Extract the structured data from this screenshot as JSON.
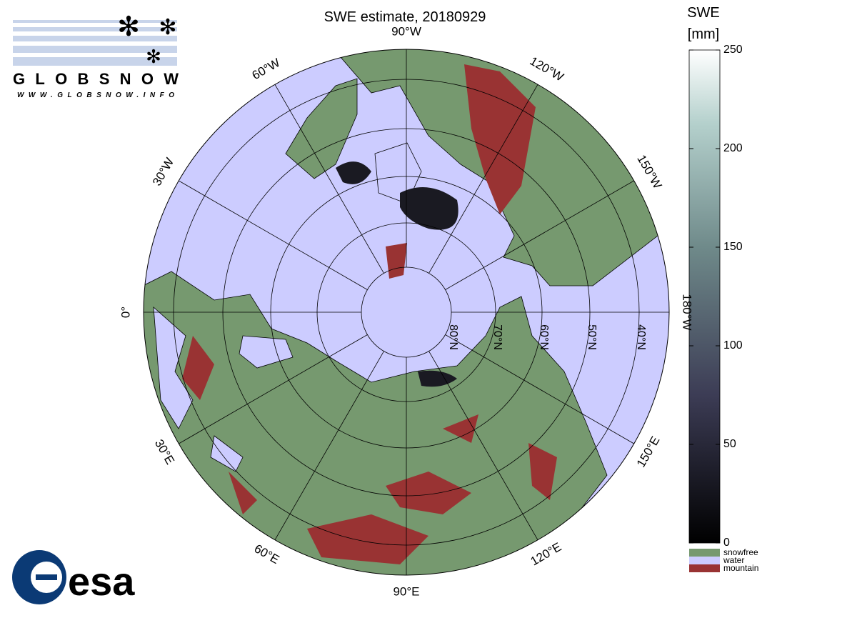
{
  "header": {
    "title": "SWE estimate, 20180929"
  },
  "map": {
    "longitude_labels": [
      "90°W",
      "120°W",
      "150°W",
      "180°W",
      "150°E",
      "120°E",
      "90°E",
      "60°E",
      "30°E",
      "0°",
      "30°W",
      "60°W"
    ],
    "latitude_labels": [
      "80°N",
      "70°N",
      "60°N",
      "50°N",
      "40°N"
    ]
  },
  "colorbar": {
    "title": "SWE",
    "unit": "[mm]",
    "lim": [
      0,
      250
    ],
    "ticks": [
      0,
      50,
      100,
      150,
      200,
      250
    ]
  },
  "legend": {
    "items": [
      "snowfree",
      "water",
      "mountain"
    ]
  },
  "logos": {
    "globsnow": "GLOBSNOW",
    "globsnow_url": "WWW.GLOBSNOW.INFO",
    "esa": "esa"
  }
}
